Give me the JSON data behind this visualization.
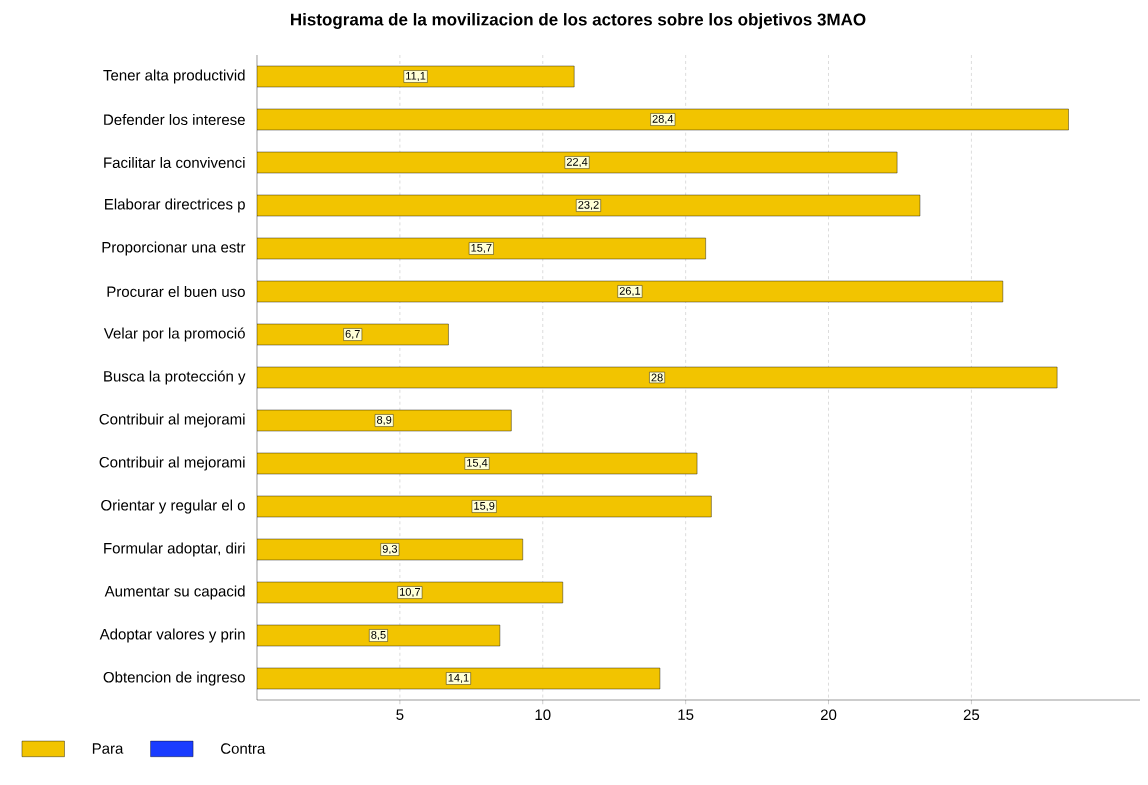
{
  "chart_data": {
    "type": "bar",
    "orientation": "horizontal",
    "title": "Histograma de la movilizacion de los actores sobre los objetivos 3MAO",
    "categories": [
      "Tener alta productivid",
      "Defender los interese",
      "Facilitar la convivenci",
      "Elaborar directrices p",
      "Proporcionar una estr",
      "Procurar el buen uso",
      "Velar por la promoció",
      "Busca la protección y",
      "Contribuir al mejorami",
      "Contribuir al mejorami",
      "Orientar y regular el o",
      "Formular adoptar, diri",
      "Aumentar su capacid",
      "Adoptar valores y prin",
      "Obtencion de ingreso"
    ],
    "series": [
      {
        "name": "Para",
        "color": "#f2c400",
        "values": [
          11.1,
          28.4,
          22.4,
          23.2,
          15.7,
          26.1,
          6.7,
          28,
          8.9,
          15.4,
          15.9,
          9.3,
          10.7,
          8.5,
          14.1
        ],
        "value_labels": [
          "11,1",
          "28,4",
          "22,4",
          "23,2",
          "15,7",
          "26,1",
          "6,7",
          "28",
          "8,9",
          "15,4",
          "15,9",
          "9,3",
          "10,7",
          "8,5",
          "14,1"
        ]
      },
      {
        "name": "Contra",
        "color": "#1a3cff",
        "values": [
          null,
          null,
          null,
          null,
          null,
          null,
          null,
          null,
          null,
          null,
          null,
          null,
          null,
          null,
          null
        ]
      }
    ],
    "xlim": [
      0,
      30.9
    ],
    "xticks": [
      5,
      10,
      15,
      20,
      25
    ],
    "grid": "x",
    "legend": "bottom left"
  }
}
